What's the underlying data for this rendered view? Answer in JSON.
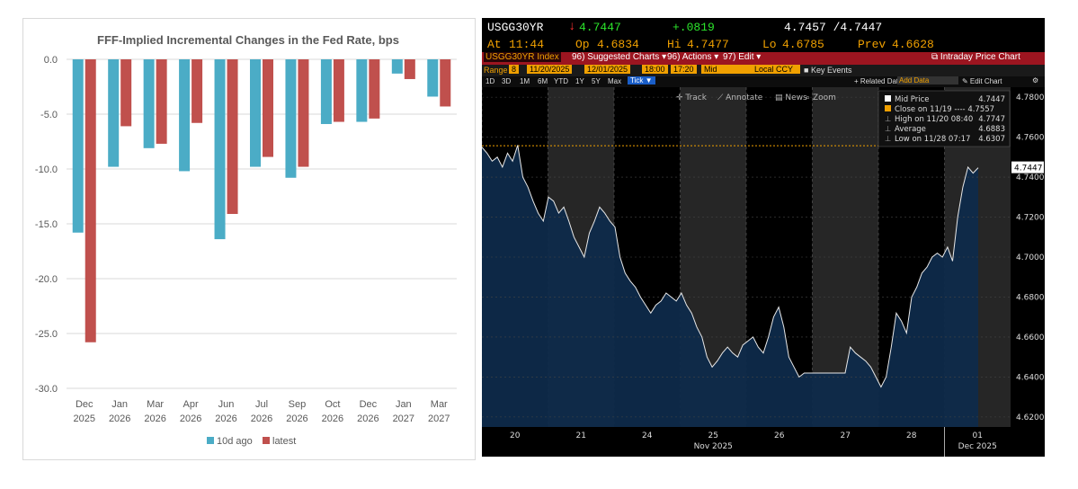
{
  "left_chart": {
    "chart_data": {
      "type": "bar",
      "title": "FFF-Implied Incremental Changes in the Fed Rate, bps",
      "categories": [
        [
          "Dec",
          "2025"
        ],
        [
          "Jan",
          "2026"
        ],
        [
          "Mar",
          "2026"
        ],
        [
          "Apr",
          "2026"
        ],
        [
          "Jun",
          "2026"
        ],
        [
          "Jul",
          "2026"
        ],
        [
          "Sep",
          "2026"
        ],
        [
          "Oct",
          "2026"
        ],
        [
          "Dec",
          "2026"
        ],
        [
          "Jan",
          "2027"
        ],
        [
          "Mar",
          "2027"
        ]
      ],
      "series": [
        {
          "name": "10d ago",
          "color": "#4bacc6",
          "values": [
            -15.8,
            -9.8,
            -8.1,
            -10.2,
            -16.4,
            -9.8,
            -10.8,
            -5.9,
            -5.7,
            -1.3,
            -3.4
          ]
        },
        {
          "name": "latest",
          "color": "#c0504d",
          "values": [
            -25.8,
            -6.1,
            -7.7,
            -5.8,
            -14.1,
            -8.9,
            -9.8,
            -5.7,
            -5.4,
            -1.8,
            -4.3
          ]
        }
      ],
      "ylim": [
        -30,
        0
      ],
      "yticks": [
        0,
        -5,
        -10,
        -15,
        -20,
        -25,
        -30
      ],
      "ytick_labels": [
        "0.0",
        "-5.0",
        "-10.0",
        "-15.0",
        "-20.0",
        "-25.0",
        "-30.0"
      ],
      "grid": true,
      "legend_position": "bottom"
    }
  },
  "right_chart": {
    "header": {
      "ticker": "USGG30YR",
      "arrow": "↓",
      "last": "4.7447",
      "change": "+.0819",
      "bid_ask": "4.7457 /4.7447",
      "at_label": "At",
      "at_time": "11:44",
      "op_label": "Op",
      "op": "4.6834",
      "hi_label": "Hi",
      "hi": "4.7477",
      "lo_label": "Lo",
      "lo": "4.6785",
      "prev_label": "Prev",
      "prev": "4.6628"
    },
    "toolbar": {
      "index": "USGG30YR Index",
      "suggested_num": "96)",
      "suggested": "Suggested Charts",
      "actions_num": "96)",
      "actions": "Actions",
      "edit_num": "97)",
      "edit": "Edit",
      "intraday": "Intraday Price Chart"
    },
    "options": {
      "range_label": "Range",
      "range_num": "8",
      "start": "11/20/2025",
      "end": "12/01/2025",
      "t_start": "18:00",
      "t_end": "17:20",
      "mid": "Mid",
      "ccy": "Local CCY",
      "key_events": "Key Events"
    },
    "periods": [
      "1D",
      "3D",
      "1M",
      "6M",
      "YTD",
      "1Y",
      "5Y",
      "Max"
    ],
    "tick_label": "Tick ▼",
    "related": "+ Related Dat",
    "add_data": "Add Data",
    "edit_chart": "✎ Edit Chart",
    "tools": [
      "✛ Track",
      "⟋ Annotate",
      "▤ News",
      "⌕ Zoom"
    ],
    "legend": [
      {
        "label": "Mid Price",
        "value": "4.7447"
      },
      {
        "label": "Close on 11/19 ---- 4.7557",
        "value": ""
      },
      {
        "label": "High on 11/20 08:40",
        "value": "4.7747"
      },
      {
        "label": "Average",
        "value": "4.6883"
      },
      {
        "label": "Low on 11/28 07:17",
        "value": "4.6307"
      }
    ],
    "chart_data": {
      "type": "line",
      "ylim": [
        4.615,
        4.785
      ],
      "yticks": [
        4.62,
        4.64,
        4.66,
        4.68,
        4.7,
        4.72,
        4.74,
        4.76,
        4.78
      ],
      "ytick_labels": [
        "4.6200",
        "4.6400",
        "4.6600",
        "4.6800",
        "4.7000",
        "4.7200",
        "4.7400",
        "4.7600",
        "4.7800"
      ],
      "close_line": 4.7557,
      "last_label": "4.7447",
      "days": [
        "20",
        "21",
        "24",
        "25",
        "26",
        "27",
        "28",
        "01"
      ],
      "month_labels": [
        "Nov 2025",
        "Dec 2025"
      ],
      "series": [
        {
          "values": [
            4.755,
            4.752,
            4.748,
            4.75,
            4.745,
            4.752,
            4.748,
            4.756,
            4.74,
            4.735,
            4.728,
            4.722,
            4.718,
            4.73,
            4.728,
            4.722,
            4.725,
            4.718,
            4.71,
            4.705,
            4.7,
            4.712,
            4.718,
            4.725,
            4.722,
            4.718,
            4.715,
            4.7,
            4.692,
            4.688,
            4.685,
            4.68,
            4.676,
            4.672,
            4.676,
            4.678,
            4.682,
            4.68,
            4.678,
            4.682,
            4.676,
            4.672,
            4.665,
            4.66,
            4.65,
            4.645,
            4.648,
            4.652,
            4.655,
            4.652,
            4.65,
            4.656,
            4.658,
            4.66,
            4.655,
            4.652,
            4.66,
            4.67,
            4.675,
            4.665,
            4.65,
            4.645,
            4.64,
            4.642,
            4.642,
            4.642,
            4.642,
            4.642,
            4.642,
            4.642,
            4.642,
            4.642,
            4.655,
            4.652,
            4.65,
            4.648,
            4.645,
            4.64,
            4.635,
            4.64,
            4.655,
            4.672,
            4.668,
            4.662,
            4.68,
            4.685,
            4.692,
            4.695,
            4.7,
            4.702,
            4.7,
            4.705,
            4.698,
            4.72,
            4.735,
            4.745,
            4.742,
            4.7447
          ]
        }
      ]
    }
  }
}
